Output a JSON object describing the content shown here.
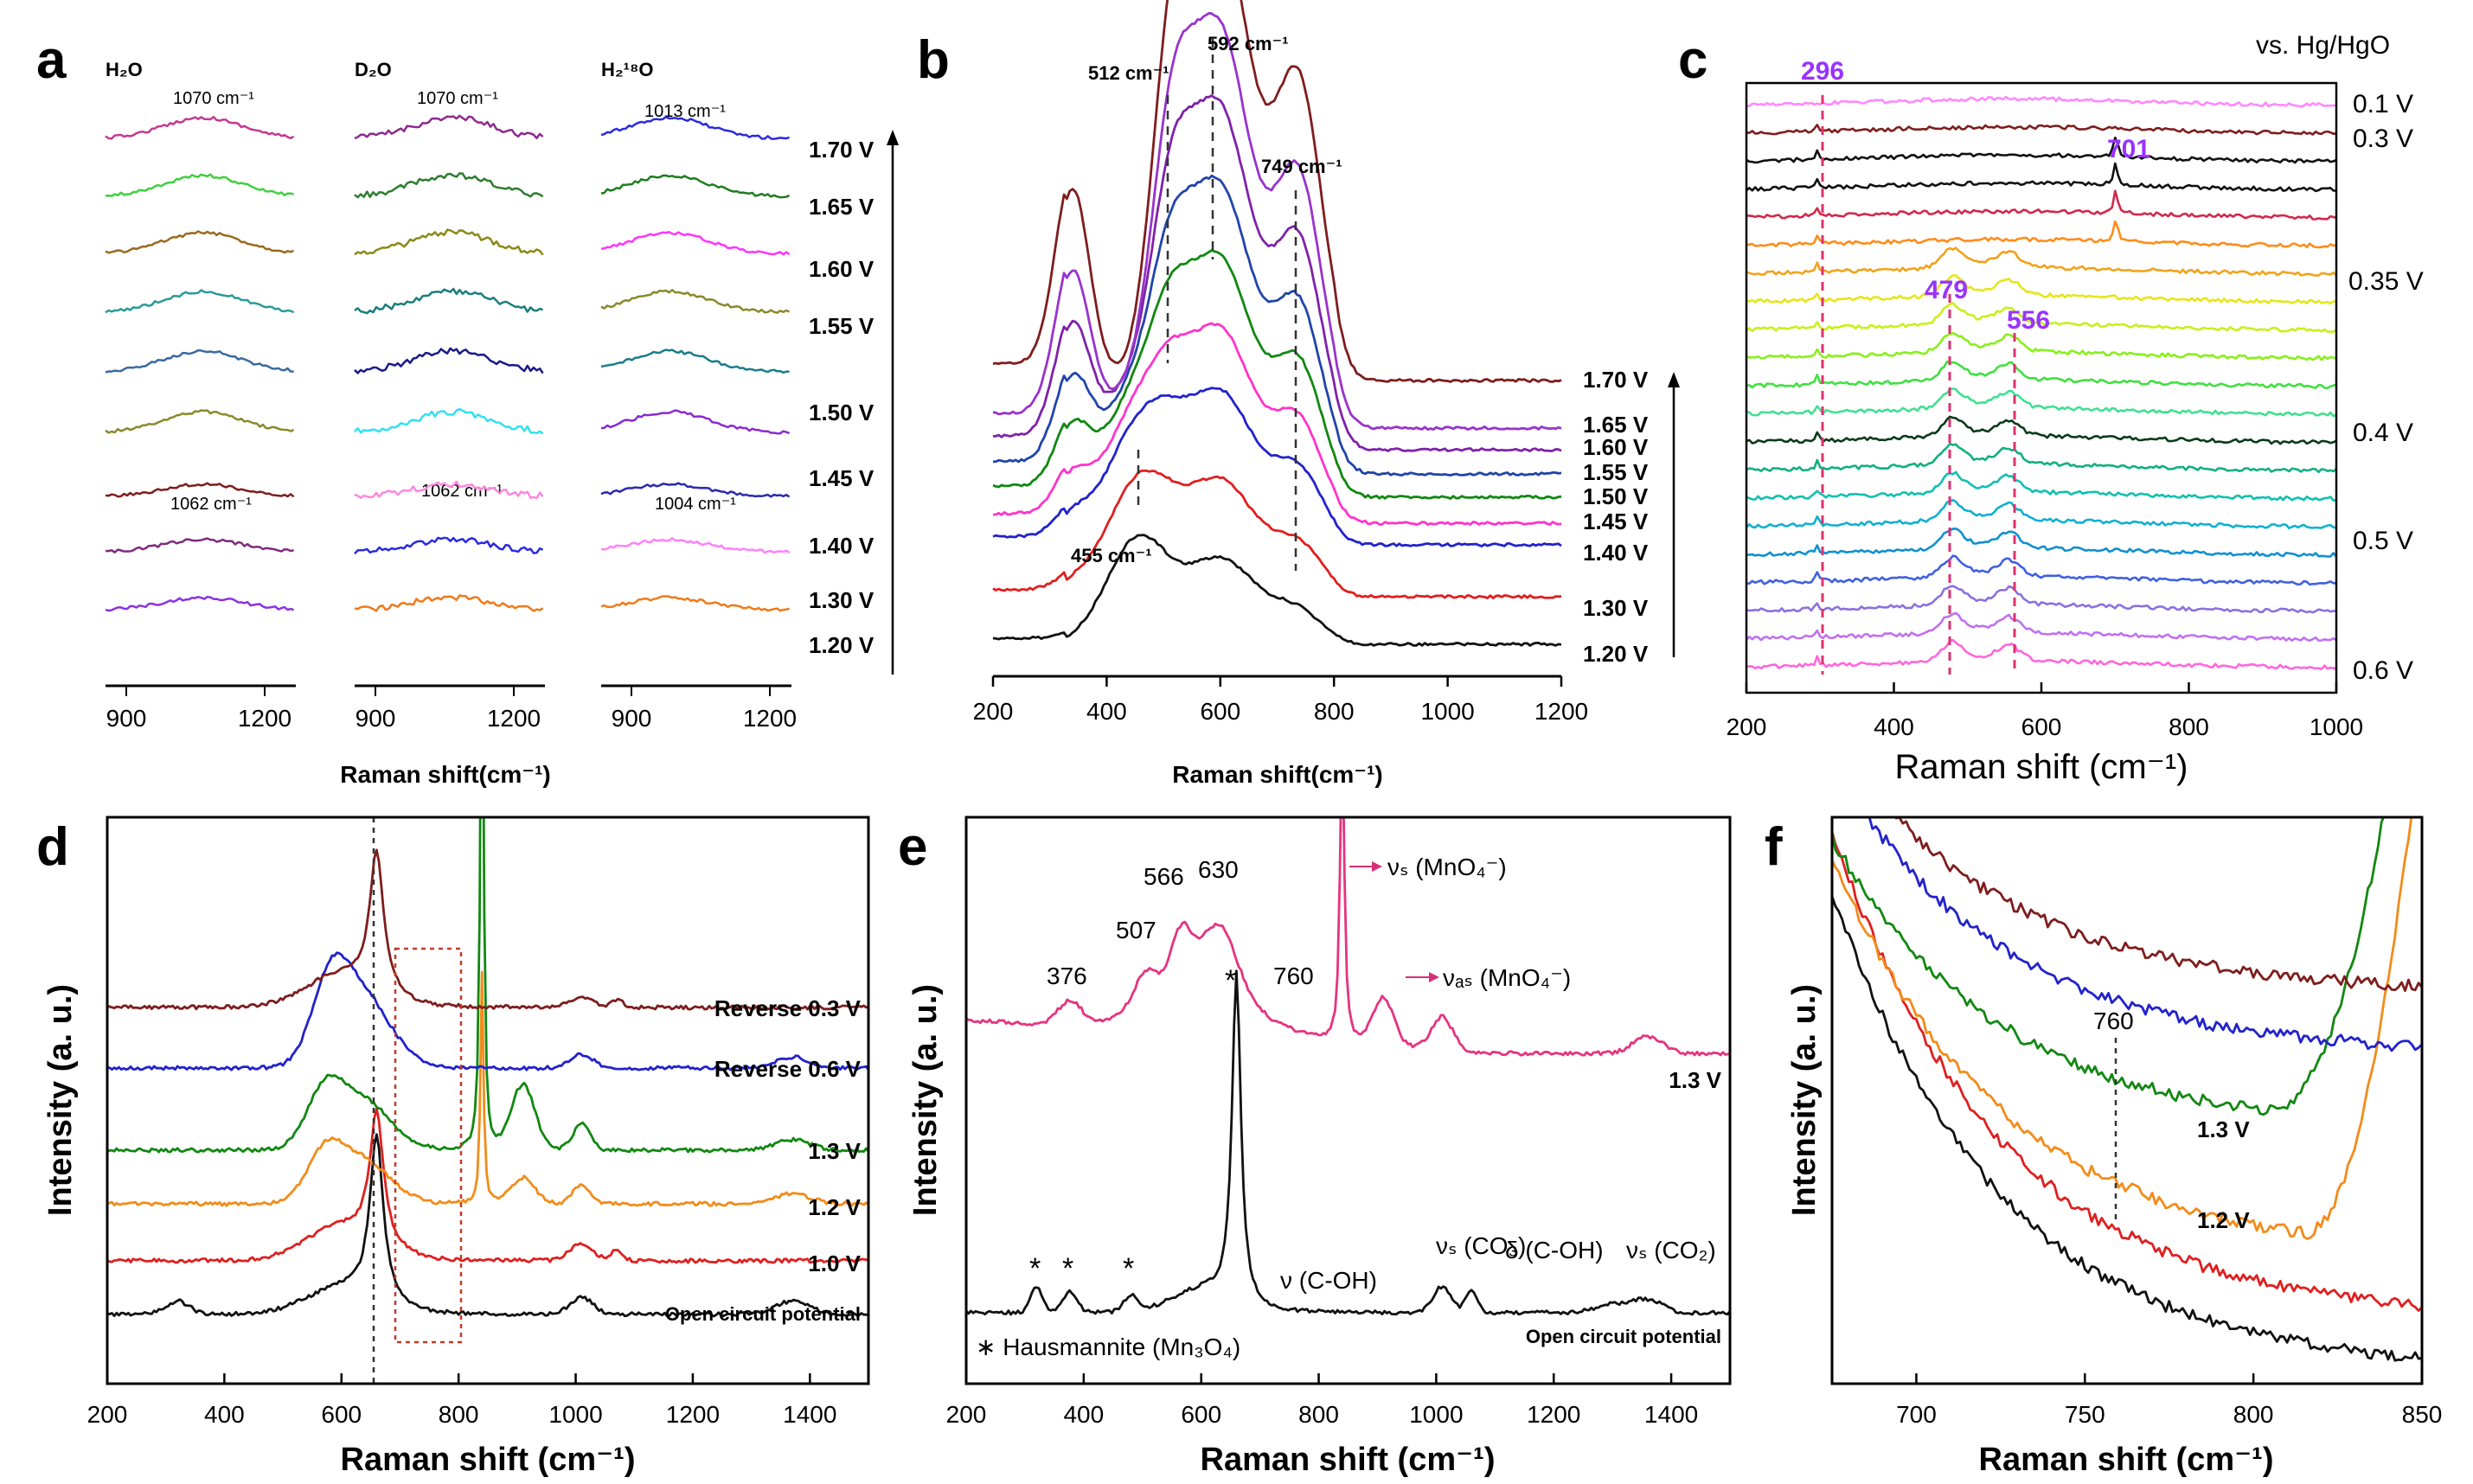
{
  "colors": {
    "purple": "#9933ff",
    "pink": "#e6337f",
    "darkred": "#7f1d1d",
    "blue": "#2222cc",
    "green": "#118811",
    "orange": "#f28c1a",
    "red": "#e01f1f",
    "black": "#111111"
  },
  "panels": {
    "a": {
      "label": "a",
      "subtitles": [
        "H₂O",
        "D₂O",
        "H₂¹⁸O"
      ],
      "top_peaks": [
        "1070 cm⁻¹",
        "1070 cm⁻¹",
        "1013 cm⁻¹"
      ],
      "low_peaks": [
        "1062 cm⁻¹",
        "1062 cm⁻¹",
        "1004 cm⁻¹"
      ],
      "voltages": [
        "1.70 V",
        "1.65 V",
        "1.60 V",
        "1.55 V",
        "1.50 V",
        "1.45 V",
        "1.40 V",
        "1.30 V",
        "1.20 V"
      ],
      "ticks": [
        [
          "900",
          "1200"
        ],
        [
          "900",
          "1200"
        ],
        [
          "900",
          "1200"
        ]
      ],
      "xlabel": "Raman shift(cm⁻¹)"
    },
    "b": {
      "label": "b",
      "peaks": [
        "512 cm⁻¹",
        "592 cm⁻¹",
        "749 cm⁻¹",
        "455 cm⁻¹"
      ],
      "voltages": [
        "1.70 V",
        "1.65 V",
        "1.60 V",
        "1.55 V",
        "1.50 V",
        "1.45 V",
        "1.40 V",
        "1.30 V",
        "1.20 V"
      ],
      "xticks": [
        "200",
        "400",
        "600",
        "800",
        "1000",
        "1200"
      ],
      "xlabel": "Raman shift(cm⁻¹)"
    },
    "c": {
      "label": "c",
      "ref": "vs. Hg/HgO",
      "peaks": [
        "296",
        "701",
        "479",
        "556"
      ],
      "voltages": [
        "0.1 V",
        "0.3 V",
        "0.35 V",
        "0.4 V",
        "0.5 V",
        "0.6 V"
      ],
      "xticks": [
        "200",
        "400",
        "600",
        "800",
        "1000"
      ],
      "xlabel": "Raman shift (cm⁻¹)"
    },
    "d": {
      "label": "d",
      "curves": [
        "Reverse 0.3 V",
        "Reverse 0.6 V",
        "1.3 V",
        "1.2 V",
        "1.0 V",
        "Open circuit potential"
      ],
      "xticks": [
        "200",
        "400",
        "600",
        "800",
        "1000",
        "1200",
        "1400"
      ],
      "xlabel": "Raman shift (cm⁻¹)",
      "ylabel": "Intensity (a. u.)"
    },
    "e": {
      "label": "e",
      "peaks": [
        "376",
        "507",
        "566",
        "630",
        "760"
      ],
      "vs_label": "νₛ (MnO₄⁻)",
      "vas_label": "νₐₛ (MnO₄⁻)",
      "top_curve": "1.3 V",
      "bottom_curve": "Open circuit potential",
      "annotations": [
        "ν (C-OH)",
        "νₛ (CO₃)",
        "δ (C-OH)",
        "νₛ (CO₂)"
      ],
      "legend": "∗ Hausmannite (Mn₃O₄)",
      "xticks": [
        "200",
        "400",
        "600",
        "800",
        "1000",
        "1200",
        "1400"
      ],
      "xlabel": "Raman shift (cm⁻¹)",
      "ylabel": "Intensity (a. u.)"
    },
    "f": {
      "label": "f",
      "peak": "760",
      "curves": [
        "1.3 V",
        "1.2 V"
      ],
      "xticks": [
        "700",
        "750",
        "800",
        "850"
      ],
      "xlabel": "Raman shift (cm⁻¹)",
      "ylabel": "Intensity (a. u.)"
    }
  },
  "chart_data": [
    {
      "type": "line",
      "title": "a",
      "xlabel": "Raman shift(cm⁻¹)",
      "xlim": [
        850,
        1260
      ],
      "series": [
        {
          "name": "H2O",
          "peak": 1070
        },
        {
          "name": "D2O",
          "peak": 1070
        },
        {
          "name": "H2 18O",
          "peak": 1013
        }
      ]
    },
    {
      "type": "line",
      "title": "b",
      "xlabel": "Raman shift(cm⁻¹)",
      "xlim": [
        200,
        1200
      ],
      "peaks": [
        455,
        512,
        592,
        749
      ],
      "voltages": [
        1.2,
        1.3,
        1.4,
        1.45,
        1.5,
        1.55,
        1.6,
        1.65,
        1.7
      ]
    },
    {
      "type": "line",
      "title": "c",
      "xlabel": "Raman shift (cm⁻¹)",
      "xlim": [
        200,
        1000
      ],
      "peaks": [
        296,
        479,
        556,
        701
      ],
      "potential_range_V": [
        0.1,
        0.6
      ]
    },
    {
      "type": "line",
      "title": "d",
      "xlabel": "Raman shift (cm⁻¹)",
      "ylabel": "Intensity (a. u.)",
      "xlim": [
        200,
        1500
      ],
      "series": [
        {
          "name": "Open circuit potential"
        },
        {
          "name": "1.0 V"
        },
        {
          "name": "1.2 V"
        },
        {
          "name": "1.3 V"
        },
        {
          "name": "Reverse 0.6 V"
        },
        {
          "name": "Reverse 0.3 V"
        }
      ],
      "marker_line": 660
    },
    {
      "type": "line",
      "title": "e",
      "xlabel": "Raman shift (cm⁻¹)",
      "ylabel": "Intensity (a. u.)",
      "xlim": [
        200,
        1500
      ],
      "peaks_1p3V": [
        376,
        507,
        566,
        630,
        760,
        840,
        910
      ],
      "ocp_main_peak": 660
    },
    {
      "type": "line",
      "title": "f",
      "xlabel": "Raman shift (cm⁻¹)",
      "ylabel": "Intensity (a. u.)",
      "xlim": [
        675,
        850
      ],
      "marker_line": 760
    }
  ]
}
